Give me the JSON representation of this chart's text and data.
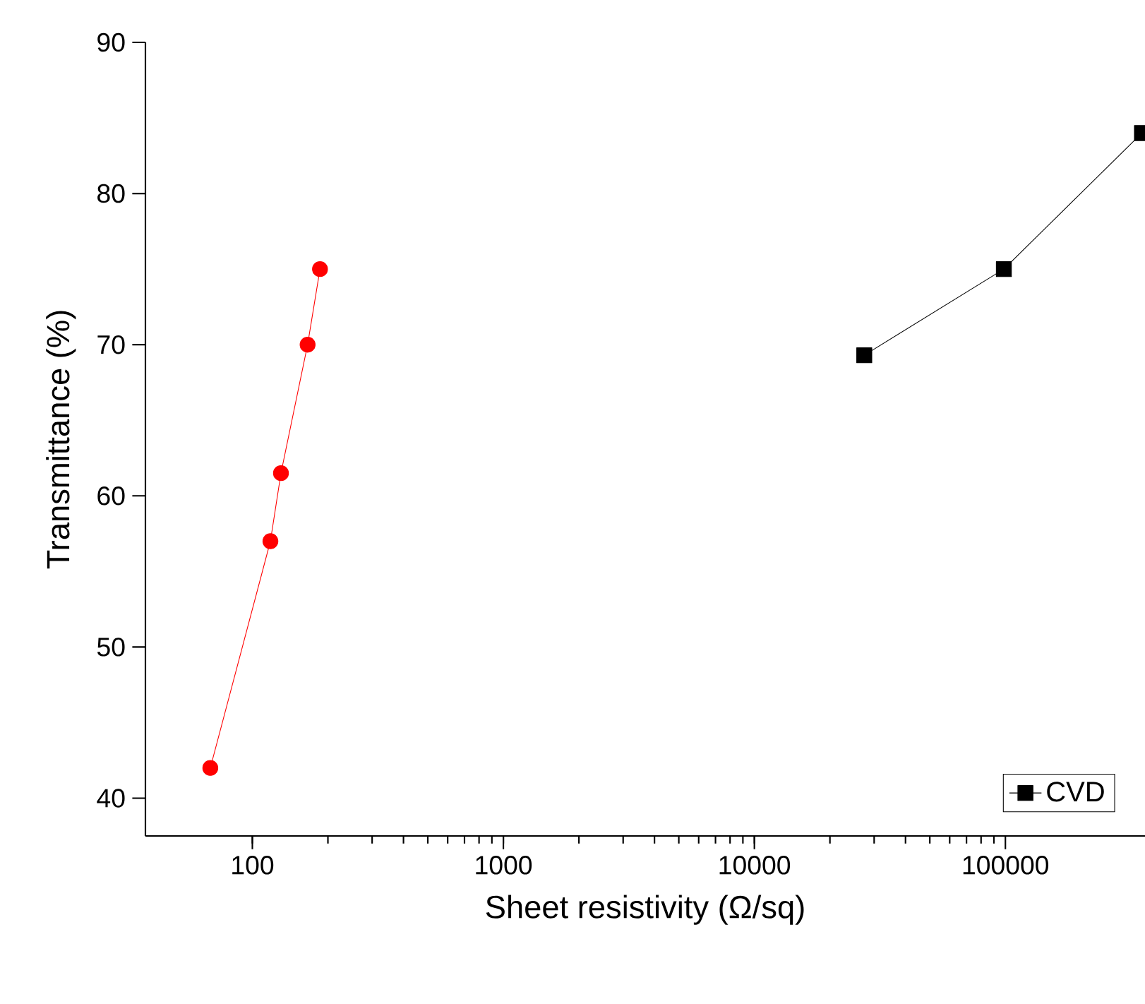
{
  "chart_data": {
    "type": "line",
    "xlabel": "Sheet resistivity (Ω/sq)",
    "ylabel": "Transmittance (%)",
    "log": "x",
    "xlim": [
      37.5,
      360000
    ],
    "ylim": [
      37.5,
      90
    ],
    "xticks": [
      100,
      1000,
      10000,
      100000
    ],
    "yticks": [
      40,
      50,
      60,
      70,
      80,
      90
    ],
    "legend": "bottom right",
    "grid": false,
    "series": [
      {
        "name": "CVD",
        "color": "#000000",
        "marker": "square",
        "x": [
          27400,
          98600,
          350000
        ],
        "values": [
          69.3,
          75,
          84
        ]
      },
      {
        "color": "#ff0000",
        "marker": "circle",
        "x": [
          68,
          118,
          130,
          166,
          186
        ],
        "values": [
          42,
          57,
          61.5,
          70,
          75
        ]
      }
    ]
  }
}
